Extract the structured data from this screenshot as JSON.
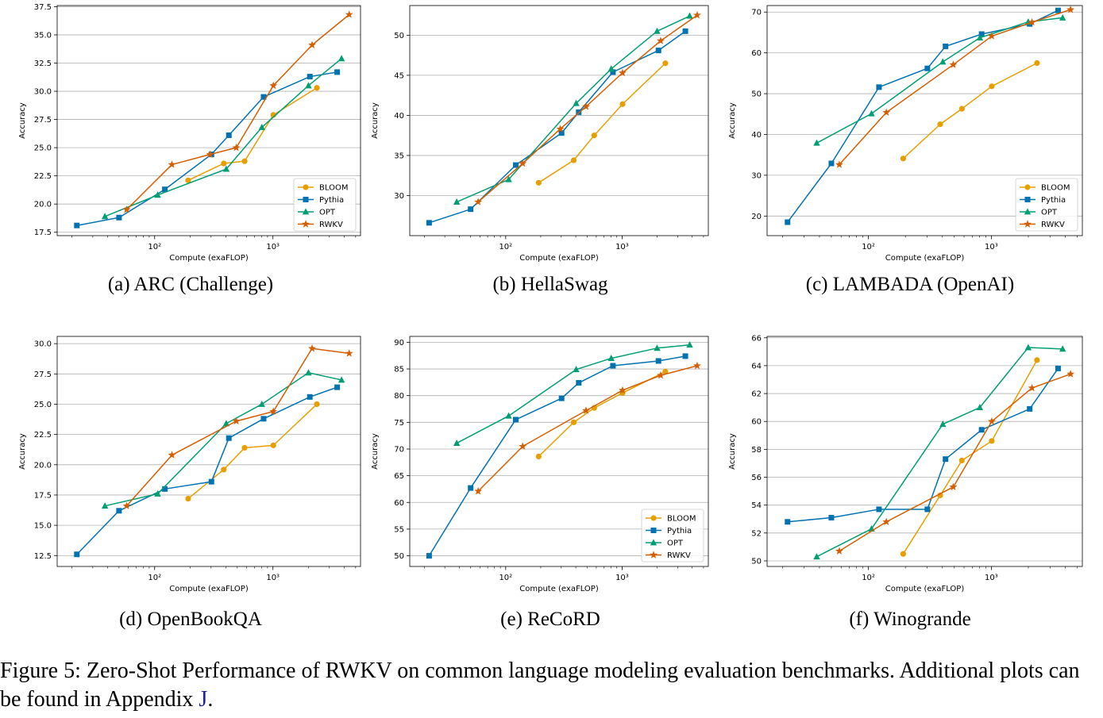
{
  "figure_caption": {
    "prefix": "Figure 5: Zero-Shot Performance of RWKV on common language modeling evaluation benchmarks. Additional plots can be found in Appendix ",
    "ref": "J",
    "suffix": "."
  },
  "series_styles": [
    {
      "name": "BLOOM",
      "color": "#e69f00",
      "marker": "circle"
    },
    {
      "name": "Pythia",
      "color": "#0072b2",
      "marker": "square"
    },
    {
      "name": "OPT",
      "color": "#009e73",
      "marker": "triangle"
    },
    {
      "name": "RWKV",
      "color": "#d55e00",
      "marker": "star"
    }
  ],
  "chart_data": [
    {
      "type": "line",
      "caption": "(a) ARC (Challenge)",
      "xlabel": "Compute (exaFLOP)",
      "ylabel": "Accuracy",
      "xscale": "log",
      "xlim": [
        15,
        5500
      ],
      "ylim": [
        17.2,
        37.6
      ],
      "yticks": [
        17.5,
        20.0,
        22.5,
        25.0,
        27.5,
        30.0,
        32.5,
        35.0,
        37.5
      ],
      "ytick_labels": [
        "17.5",
        "20.0",
        "22.5",
        "25.0",
        "27.5",
        "30.0",
        "32.5",
        "35.0",
        "37.5"
      ],
      "xticks": [
        100,
        1000
      ],
      "xtick_labels": [
        "10²",
        "10³"
      ],
      "legend_loc": "lower-right",
      "series": [
        {
          "name": "BLOOM",
          "x": [
            192,
            384,
            576,
            1008,
            2352
          ],
          "y": [
            22.1,
            23.6,
            23.8,
            27.9,
            30.3
          ]
        },
        {
          "name": "Pythia",
          "x": [
            22,
            50,
            122,
            302,
            424,
            834,
            2052,
            3492
          ],
          "y": [
            18.1,
            18.8,
            21.3,
            24.4,
            26.1,
            29.5,
            31.3,
            31.7
          ]
        },
        {
          "name": "OPT",
          "x": [
            38,
            106,
            403,
            806,
            1996,
            3802
          ],
          "y": [
            18.9,
            20.8,
            23.1,
            26.8,
            30.5,
            32.9
          ]
        },
        {
          "name": "RWKV",
          "x": [
            58,
            140,
            294,
            490,
            1008,
            2142,
            4410
          ],
          "y": [
            19.5,
            23.5,
            24.4,
            25.0,
            30.5,
            34.1,
            36.8
          ]
        }
      ]
    },
    {
      "type": "line",
      "caption": "(b) HellaSwag",
      "xlabel": "Compute (exaFLOP)",
      "ylabel": "Accuracy",
      "xscale": "log",
      "xlim": [
        15,
        5500
      ],
      "ylim": [
        25.0,
        53.7
      ],
      "yticks": [
        30,
        35,
        40,
        45,
        50
      ],
      "ytick_labels": [
        "30",
        "35",
        "40",
        "45",
        "50"
      ],
      "xticks": [
        100,
        1000
      ],
      "xtick_labels": [
        "10²",
        "10³"
      ],
      "legend_loc": "none",
      "series": [
        {
          "name": "BLOOM",
          "x": [
            192,
            384,
            576,
            1008,
            2352
          ],
          "y": [
            31.6,
            34.4,
            37.5,
            41.4,
            46.5
          ]
        },
        {
          "name": "Pythia",
          "x": [
            22,
            50,
            122,
            302,
            424,
            834,
            2052,
            3492
          ],
          "y": [
            26.6,
            28.3,
            33.8,
            37.8,
            40.4,
            45.4,
            48.1,
            50.5
          ]
        },
        {
          "name": "OPT",
          "x": [
            38,
            106,
            403,
            806,
            1996,
            3802
          ],
          "y": [
            29.2,
            32.0,
            41.5,
            45.8,
            50.5,
            52.4
          ]
        },
        {
          "name": "RWKV",
          "x": [
            58,
            140,
            294,
            490,
            1008,
            2142,
            4410
          ],
          "y": [
            29.2,
            34.0,
            38.3,
            41.1,
            45.3,
            49.3,
            52.5
          ]
        }
      ]
    },
    {
      "type": "line",
      "caption": "(c) LAMBADA (OpenAI)",
      "xlabel": "Compute (exaFLOP)",
      "ylabel": "Accuracy",
      "xscale": "log",
      "xlim": [
        15,
        5500
      ],
      "ylim": [
        15.2,
        71.6
      ],
      "yticks": [
        20,
        30,
        40,
        50,
        60,
        70
      ],
      "ytick_labels": [
        "20",
        "30",
        "40",
        "50",
        "60",
        "70"
      ],
      "xticks": [
        100,
        1000
      ],
      "xtick_labels": [
        "10²",
        "10³"
      ],
      "legend_loc": "lower-right",
      "series": [
        {
          "name": "BLOOM",
          "x": [
            192,
            384,
            576,
            1008,
            2352
          ],
          "y": [
            34.1,
            42.5,
            46.3,
            51.8,
            57.5
          ]
        },
        {
          "name": "Pythia",
          "x": [
            22,
            50,
            122,
            302,
            424,
            834,
            2052,
            3492
          ],
          "y": [
            18.5,
            32.9,
            51.6,
            56.2,
            61.6,
            64.6,
            67.1,
            70.4
          ]
        },
        {
          "name": "OPT",
          "x": [
            38,
            106,
            403,
            806,
            1996,
            3802
          ],
          "y": [
            37.9,
            45.1,
            57.8,
            63.7,
            67.6,
            68.6
          ]
        },
        {
          "name": "RWKV",
          "x": [
            58,
            140,
            490,
            1008,
            2142,
            4410
          ],
          "y": [
            32.6,
            45.4,
            57.1,
            64.1,
            67.5,
            70.6
          ]
        }
      ]
    },
    {
      "type": "line",
      "caption": "(d) OpenBookQA",
      "xlabel": "Compute (exaFLOP)",
      "ylabel": "Accuracy",
      "xscale": "log",
      "xlim": [
        15,
        5500
      ],
      "ylim": [
        11.6,
        30.6
      ],
      "yticks": [
        12.5,
        15.0,
        17.5,
        20.0,
        22.5,
        25.0,
        27.5,
        30.0
      ],
      "ytick_labels": [
        "12.5",
        "15.0",
        "17.5",
        "20.0",
        "22.5",
        "25.0",
        "27.5",
        "30.0"
      ],
      "xticks": [
        100,
        1000
      ],
      "xtick_labels": [
        "10²",
        "10³"
      ],
      "legend_loc": "none",
      "series": [
        {
          "name": "BLOOM",
          "x": [
            192,
            384,
            576,
            1008,
            2352
          ],
          "y": [
            17.2,
            19.6,
            21.4,
            21.6,
            25.0
          ]
        },
        {
          "name": "Pythia",
          "x": [
            22,
            50,
            122,
            302,
            424,
            834,
            2052,
            3492
          ],
          "y": [
            12.6,
            16.2,
            18.0,
            18.6,
            22.2,
            23.8,
            25.6,
            26.4
          ]
        },
        {
          "name": "OPT",
          "x": [
            38,
            106,
            403,
            806,
            1996,
            3802
          ],
          "y": [
            16.6,
            17.6,
            23.4,
            25.0,
            27.6,
            27.0
          ]
        },
        {
          "name": "RWKV",
          "x": [
            58,
            140,
            490,
            1008,
            2142,
            4410
          ],
          "y": [
            16.6,
            20.8,
            23.6,
            24.4,
            29.6,
            29.2
          ]
        }
      ]
    },
    {
      "type": "line",
      "caption": "(e) ReCoRD",
      "xlabel": "Compute (exaFLOP)",
      "ylabel": "Accuracy",
      "xscale": "log",
      "xlim": [
        15,
        5500
      ],
      "ylim": [
        48.0,
        91.1
      ],
      "yticks": [
        50,
        55,
        60,
        65,
        70,
        75,
        80,
        85,
        90
      ],
      "ytick_labels": [
        "50",
        "55",
        "60",
        "65",
        "70",
        "75",
        "80",
        "85",
        "90"
      ],
      "xticks": [
        100,
        1000
      ],
      "xtick_labels": [
        "10²",
        "10³"
      ],
      "legend_loc": "lower-right",
      "series": [
        {
          "name": "BLOOM",
          "x": [
            192,
            384,
            576,
            1008,
            2352
          ],
          "y": [
            68.6,
            75.0,
            77.7,
            80.5,
            84.5
          ]
        },
        {
          "name": "Pythia",
          "x": [
            22,
            50,
            122,
            302,
            424,
            834,
            2052,
            3492
          ],
          "y": [
            50.0,
            62.7,
            75.5,
            79.5,
            82.4,
            85.6,
            86.5,
            87.4
          ]
        },
        {
          "name": "OPT",
          "x": [
            38,
            106,
            403,
            806,
            1996,
            3802
          ],
          "y": [
            71.1,
            76.2,
            84.9,
            87.0,
            88.9,
            89.5
          ]
        },
        {
          "name": "RWKV",
          "x": [
            58,
            140,
            490,
            1008,
            2142,
            4410
          ],
          "y": [
            62.1,
            70.5,
            77.2,
            81.0,
            83.8,
            85.6
          ]
        }
      ]
    },
    {
      "type": "line",
      "caption": "(f) Winogrande",
      "xlabel": "Compute (exaFLOP)",
      "ylabel": "Accuracy",
      "xscale": "log",
      "xlim": [
        15,
        5500
      ],
      "ylim": [
        49.6,
        66.1
      ],
      "yticks": [
        50,
        52,
        54,
        56,
        58,
        60,
        62,
        64,
        66
      ],
      "ytick_labels": [
        "50",
        "52",
        "54",
        "56",
        "58",
        "60",
        "62",
        "64",
        "66"
      ],
      "xticks": [
        100,
        1000
      ],
      "xtick_labels": [
        "10²",
        "10³"
      ],
      "legend_loc": "none",
      "series": [
        {
          "name": "BLOOM",
          "x": [
            192,
            384,
            576,
            1008,
            2352
          ],
          "y": [
            50.5,
            54.7,
            57.2,
            58.6,
            64.4
          ]
        },
        {
          "name": "Pythia",
          "x": [
            22,
            50,
            122,
            302,
            424,
            834,
            2052,
            3492
          ],
          "y": [
            52.8,
            53.1,
            53.7,
            53.7,
            57.3,
            59.4,
            60.9,
            63.8
          ]
        },
        {
          "name": "OPT",
          "x": [
            38,
            106,
            403,
            806,
            1996,
            3802
          ],
          "y": [
            50.3,
            52.3,
            59.8,
            61.0,
            65.3,
            65.2
          ]
        },
        {
          "name": "RWKV",
          "x": [
            58,
            140,
            490,
            1008,
            2142,
            4410
          ],
          "y": [
            50.7,
            52.8,
            55.3,
            60.0,
            62.4,
            63.4
          ]
        }
      ]
    }
  ]
}
